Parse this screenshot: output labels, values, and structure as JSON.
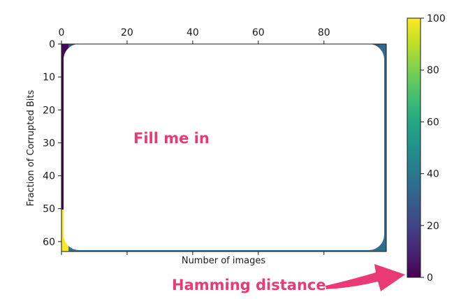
{
  "chart_data": {
    "type": "heatmap",
    "title": "",
    "xlabel": "Number of images",
    "ylabel": "Fraction of Corrupted Bits",
    "x_ticks": [
      "0",
      "20",
      "40",
      "60",
      "80"
    ],
    "x_tick_values": [
      0,
      20,
      40,
      60,
      80
    ],
    "y_ticks": [
      "0",
      "10",
      "20",
      "30",
      "40",
      "50",
      "60"
    ],
    "y_tick_values": [
      0,
      10,
      20,
      30,
      40,
      50,
      60
    ],
    "xlim": [
      0,
      99
    ],
    "ylim": [
      63,
      0
    ],
    "x_ticks_position": "top",
    "grid": false,
    "colorbar": {
      "label": "",
      "range": [
        0,
        100
      ],
      "ticks": [
        "0",
        "20",
        "40",
        "60",
        "80",
        "100"
      ],
      "tick_values": [
        0,
        20,
        40,
        60,
        80,
        100
      ],
      "colormap": "viridis",
      "position": "right"
    },
    "visible_cells": {
      "left_column": [
        {
          "y_from": 0,
          "y_to": 50,
          "value": 5
        },
        {
          "y_from": 50,
          "y_to": 63,
          "value": 100
        }
      ],
      "top_row_value": 5,
      "bottom_row_value": 30
    },
    "annotations": [
      {
        "text": "Fill me in",
        "location": "plot center-left"
      },
      {
        "text": "Hamming distance",
        "location": "bottom right, arrow pointing to colorbar"
      }
    ]
  },
  "colors": {
    "annotation": "#ea3a76",
    "viridis_low": "#440154",
    "viridis_high": "#fde725"
  }
}
